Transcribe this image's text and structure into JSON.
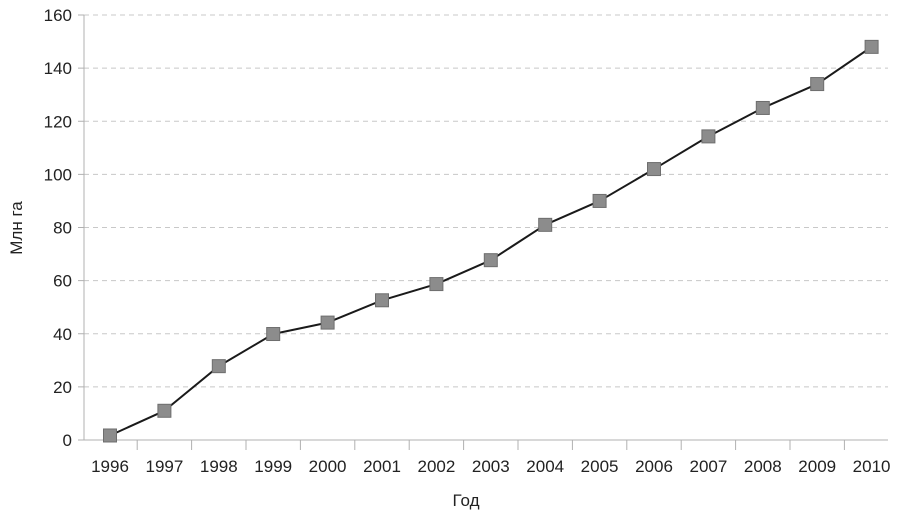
{
  "colors": {
    "line": "#1a1a1a",
    "marker_fill": "#8c8c8c",
    "marker_stroke": "#6e6e6e",
    "grid": "#c8c8c8",
    "axis": "#b0b0b0",
    "text": "#222222"
  },
  "chart_data": {
    "type": "line",
    "title": "",
    "xlabel": "Год",
    "ylabel": "Млн га",
    "ylim": [
      0,
      160
    ],
    "yticks": [
      0,
      20,
      40,
      60,
      80,
      100,
      120,
      140,
      160
    ],
    "ytick_labels": [
      "0",
      "20",
      "40",
      "60",
      "80",
      "100",
      "120",
      "140",
      "160"
    ],
    "grid": "horizontal dashed",
    "legend": "none",
    "marker": "square",
    "categories": [
      "1996",
      "1997",
      "1998",
      "1999",
      "2000",
      "2001",
      "2002",
      "2003",
      "2004",
      "2005",
      "2006",
      "2007",
      "2008",
      "2009",
      "2010"
    ],
    "series": [
      {
        "values": [
          1.7,
          11,
          27.8,
          39.9,
          44.2,
          52.6,
          58.7,
          67.7,
          81,
          90,
          102,
          114.3,
          125,
          134,
          148
        ]
      }
    ]
  }
}
